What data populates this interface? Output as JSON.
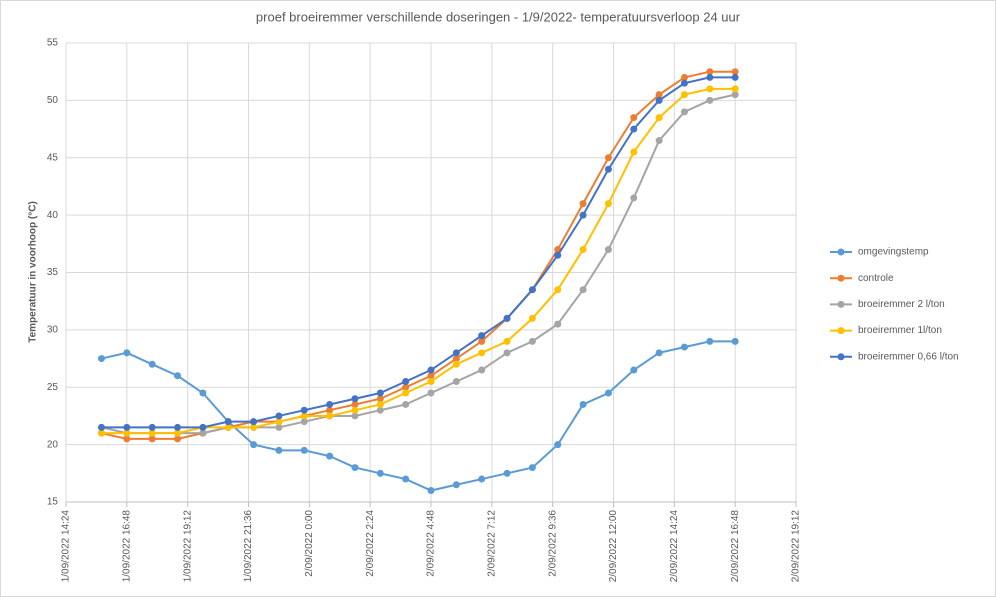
{
  "chart_data": {
    "type": "line",
    "title": "proef broeiremmer verschillende doseringen - 1/9/2022-  temperatuursverloop 24 uur",
    "y_label": "Temperatuur in voorhoop (°C)",
    "x": [
      "2022-09-01T15:48",
      "2022-09-01T16:48",
      "2022-09-01T17:48",
      "2022-09-01T18:48",
      "2022-09-01T19:48",
      "2022-09-01T20:48",
      "2022-09-01T21:48",
      "2022-09-01T22:48",
      "2022-09-01T23:48",
      "2022-09-02T00:48",
      "2022-09-02T01:48",
      "2022-09-02T02:48",
      "2022-09-02T03:48",
      "2022-09-02T04:48",
      "2022-09-02T05:48",
      "2022-09-02T06:48",
      "2022-09-02T07:48",
      "2022-09-02T08:48",
      "2022-09-02T09:48",
      "2022-09-02T10:48",
      "2022-09-02T11:48",
      "2022-09-02T12:48",
      "2022-09-02T13:48",
      "2022-09-02T14:48",
      "2022-09-02T15:48",
      "2022-09-02T16:48"
    ],
    "series": [
      {
        "name": "omgevingstemp",
        "color": "#5b9bd5",
        "values": [
          27.5,
          28,
          27,
          26,
          24.5,
          22,
          20,
          19.5,
          19.5,
          19,
          18,
          17.5,
          17,
          16,
          16.5,
          17,
          17.5,
          18,
          20,
          23.5,
          24.5,
          26.5,
          28,
          28.5,
          29,
          29
        ]
      },
      {
        "name": "controle",
        "color": "#ed7d31",
        "values": [
          21,
          20.5,
          20.5,
          20.5,
          21,
          21.5,
          22,
          22,
          22.5,
          23,
          23.5,
          24,
          25,
          26,
          27.5,
          29,
          31,
          33.5,
          37,
          41,
          45,
          48.5,
          50.5,
          52,
          52.5,
          52.5
        ]
      },
      {
        "name": "broeiremmer 2 l/ton",
        "color": "#a5a5a5",
        "values": [
          21.5,
          21,
          21,
          21,
          21,
          21.5,
          21.5,
          21.5,
          22,
          22.5,
          22.5,
          23,
          23.5,
          24.5,
          25.5,
          26.5,
          28,
          29,
          30.5,
          33.5,
          37,
          41.5,
          46.5,
          49,
          50,
          50.5
        ]
      },
      {
        "name": "broeiremmer 1l/ton",
        "color": "#ffc000",
        "values": [
          21,
          21,
          21,
          21,
          21.5,
          21.5,
          21.5,
          22,
          22.5,
          22.5,
          23,
          23.5,
          24.5,
          25.5,
          27,
          28,
          29,
          31,
          33.5,
          37,
          41,
          45.5,
          48.5,
          50.5,
          51,
          51
        ]
      },
      {
        "name": "broeiremmer 0,66 l/ton",
        "color": "#4472c4",
        "values": [
          21.5,
          21.5,
          21.5,
          21.5,
          21.5,
          22,
          22,
          22.5,
          23,
          23.5,
          24,
          24.5,
          25.5,
          26.5,
          28,
          29.5,
          31,
          33.5,
          36.5,
          40,
          44,
          47.5,
          50,
          51.5,
          52,
          52
        ]
      }
    ],
    "xlim": [
      "2022-09-01T14:24",
      "2022-09-02T19:12"
    ],
    "xticks": [
      {
        "value": "2022-09-01T14:24",
        "label": "1/09/2022 14:24"
      },
      {
        "value": "2022-09-01T16:48",
        "label": "1/09/2022 16:48"
      },
      {
        "value": "2022-09-01T19:12",
        "label": "1/09/2022 19:12"
      },
      {
        "value": "2022-09-01T21:36",
        "label": "1/09/2022 21:36"
      },
      {
        "value": "2022-09-02T00:00",
        "label": "2/09/2022 0:00"
      },
      {
        "value": "2022-09-02T02:24",
        "label": "2/09/2022 2:24"
      },
      {
        "value": "2022-09-02T04:48",
        "label": "2/09/2022 4:48"
      },
      {
        "value": "2022-09-02T07:12",
        "label": "2/09/2022 7:12"
      },
      {
        "value": "2022-09-02T09:36",
        "label": "2/09/2022 9:36"
      },
      {
        "value": "2022-09-02T12:00",
        "label": "2/09/2022 12:00"
      },
      {
        "value": "2022-09-02T14:24",
        "label": "2/09/2022 14:24"
      },
      {
        "value": "2022-09-02T16:48",
        "label": "2/09/2022 16:48"
      },
      {
        "value": "2022-09-02T19:12",
        "label": "2/09/2022 19:12"
      }
    ],
    "ylim": [
      15,
      55
    ],
    "yticks": [
      15,
      20,
      25,
      30,
      35,
      40,
      45,
      50,
      55
    ],
    "grid": true,
    "legend": "right"
  }
}
